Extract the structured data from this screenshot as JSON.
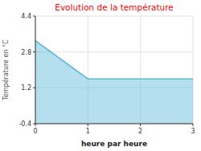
{
  "chart_data": {
    "type": "area",
    "title": "Evolution de la température",
    "xlabel": "heure par heure",
    "ylabel": "Température en °C",
    "x": [
      0,
      1,
      3
    ],
    "values": [
      3.3,
      1.6,
      1.6
    ],
    "color": "#5ab8d8",
    "xlim": [
      0,
      3
    ],
    "ylim": [
      -0.4,
      4.4
    ],
    "xticks": [
      0,
      1,
      2,
      3
    ],
    "yticks": [
      -0.4,
      1.2,
      2.8,
      4.4
    ],
    "grid": true
  }
}
